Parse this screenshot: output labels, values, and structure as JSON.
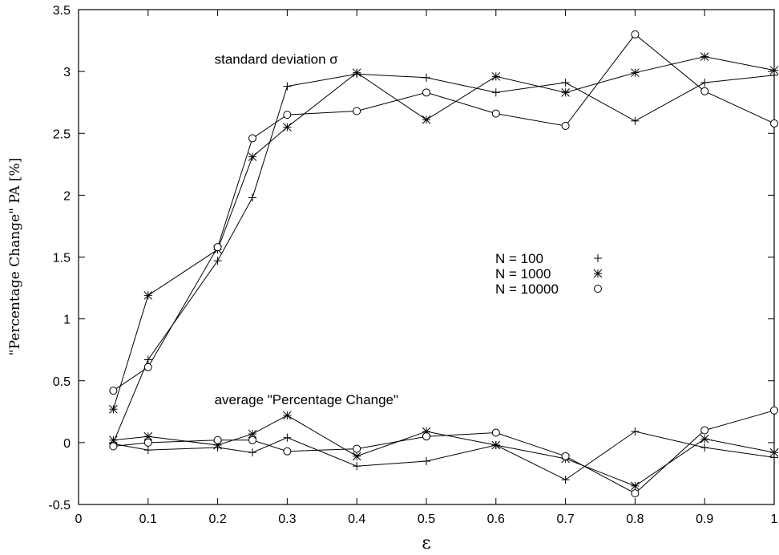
{
  "chart_data": {
    "type": "line",
    "title": "",
    "xlabel": "ε",
    "ylabel": "\"Percentage Change\" PA [%]",
    "xlim": [
      0,
      1
    ],
    "ylim": [
      -0.5,
      3.5
    ],
    "xticks": [
      "0",
      "0.1",
      "0.2",
      "0.3",
      "0.4",
      "0.5",
      "0.6",
      "0.7",
      "0.8",
      "0.9",
      "1"
    ],
    "yticks": [
      "-0.5",
      "0",
      "0.5",
      "1",
      "1.5",
      "2",
      "2.5",
      "3",
      "3.5"
    ],
    "grid": false,
    "legend_position": "right-center",
    "annotations": [
      {
        "text": "standard deviation σ",
        "x": 0.2,
        "y": 3.1
      },
      {
        "text": "average \"Percentage Change\"",
        "x": 0.2,
        "y": 0.35
      }
    ],
    "x": [
      0.05,
      0.1,
      0.2,
      0.25,
      0.3,
      0.4,
      0.5,
      0.6,
      0.7,
      0.8,
      0.9,
      1.0
    ],
    "series": [
      {
        "name": "N = 100",
        "group": "standard deviation",
        "marker": "plus",
        "values": [
          0.0,
          0.67,
          1.47,
          1.98,
          2.88,
          2.98,
          2.95,
          2.83,
          2.91,
          2.6,
          2.91,
          2.97
        ]
      },
      {
        "name": "N = 1000",
        "group": "standard deviation",
        "marker": "star",
        "values": [
          0.27,
          1.19,
          1.56,
          2.31,
          2.55,
          2.99,
          2.61,
          2.96,
          2.83,
          2.99,
          3.12,
          3.01
        ]
      },
      {
        "name": "N = 10000",
        "group": "standard deviation",
        "marker": "circle",
        "values": [
          0.42,
          0.61,
          1.58,
          2.46,
          2.65,
          2.68,
          2.83,
          2.66,
          2.56,
          3.3,
          2.84,
          2.58
        ]
      },
      {
        "name": "N = 100",
        "group": "average",
        "marker": "plus",
        "values": [
          -0.01,
          -0.06,
          -0.04,
          -0.08,
          0.04,
          -0.19,
          -0.15,
          -0.02,
          -0.3,
          0.09,
          -0.04,
          -0.12
        ]
      },
      {
        "name": "N = 1000",
        "group": "average",
        "marker": "star",
        "values": [
          0.02,
          0.05,
          -0.02,
          0.07,
          0.22,
          -0.11,
          0.09,
          -0.02,
          -0.13,
          -0.35,
          0.03,
          -0.08
        ]
      },
      {
        "name": "N = 10000",
        "group": "average",
        "marker": "circle",
        "values": [
          -0.03,
          0.0,
          0.02,
          0.02,
          -0.07,
          -0.05,
          0.05,
          0.08,
          -0.11,
          -0.41,
          0.1,
          0.26
        ]
      }
    ],
    "legend": [
      {
        "label": "N = 100",
        "marker": "plus"
      },
      {
        "label": "N = 1000",
        "marker": "star"
      },
      {
        "label": "N = 10000",
        "marker": "circle"
      }
    ]
  }
}
